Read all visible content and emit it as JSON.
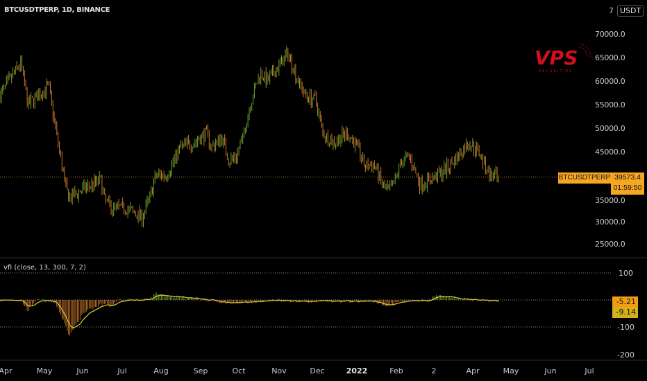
{
  "header": {
    "title": "BTCUSDTPERP, 1D, BINANCE",
    "currency": "USDT",
    "currency_prefix": "7"
  },
  "logo": {
    "text": "VPS",
    "subtext": "SECURITIES"
  },
  "price_axis": {
    "ticks": [
      "70000.0",
      "65000.0",
      "60000.0",
      "55000.0",
      "50000.0",
      "45000.0",
      "35000.0",
      "30000.0",
      "25000.0"
    ]
  },
  "last_price": {
    "symbol": "BTCUSDTPERP",
    "price": "39573.4",
    "countdown": "01:59:50"
  },
  "indicator": {
    "label": "vfi (close, 13, 300, 7, 2)",
    "ticks": [
      "100",
      "-100",
      "-200"
    ],
    "value": "-5.21",
    "signal": "-9.14"
  },
  "time_axis": {
    "labels": [
      "Apr",
      "May",
      "Jun",
      "Jul",
      "Aug",
      "Sep",
      "Oct",
      "Nov",
      "Dec",
      "2022",
      "Feb",
      "2",
      "Apr",
      "May",
      "Jun",
      "Jul"
    ]
  },
  "colors": {
    "up": "#6f9f2e",
    "down": "#c9782a",
    "accent": "#f5a623",
    "signal": "#d9c23a",
    "logo": "#d0101c"
  },
  "chart_data": {
    "type": "bar",
    "title": "BTCUSDTPERP, 1D, BINANCE",
    "ylim": [
      22000,
      73000
    ],
    "price_path": [
      [
        0,
        57000
      ],
      [
        30,
        64000
      ],
      [
        40,
        55000
      ],
      [
        55,
        57000
      ],
      [
        70,
        59000
      ],
      [
        80,
        50000
      ],
      [
        95,
        37000
      ],
      [
        100,
        35000
      ],
      [
        120,
        37000
      ],
      [
        145,
        39000
      ],
      [
        150,
        35000
      ],
      [
        160,
        33000
      ],
      [
        180,
        33000
      ],
      [
        205,
        31000
      ],
      [
        215,
        35000
      ],
      [
        225,
        40000
      ],
      [
        240,
        40000
      ],
      [
        260,
        46000
      ],
      [
        280,
        47000
      ],
      [
        297,
        49000
      ],
      [
        305,
        46000
      ],
      [
        320,
        48000
      ],
      [
        330,
        43000
      ],
      [
        340,
        44000
      ],
      [
        350,
        48000
      ],
      [
        360,
        55000
      ],
      [
        375,
        62000
      ],
      [
        385,
        60000
      ],
      [
        400,
        63000
      ],
      [
        415,
        66000
      ],
      [
        420,
        64000
      ],
      [
        430,
        60000
      ],
      [
        440,
        57000
      ],
      [
        455,
        56000
      ],
      [
        465,
        49000
      ],
      [
        480,
        47000
      ],
      [
        500,
        49000
      ],
      [
        515,
        46000
      ],
      [
        525,
        42000
      ],
      [
        540,
        42000
      ],
      [
        553,
        37000
      ],
      [
        565,
        37000
      ],
      [
        578,
        43000
      ],
      [
        590,
        44000
      ],
      [
        605,
        38000
      ],
      [
        620,
        39000
      ],
      [
        640,
        41000
      ],
      [
        660,
        44000
      ],
      [
        675,
        47000
      ],
      [
        690,
        45000
      ],
      [
        705,
        40000
      ],
      [
        718,
        39573
      ]
    ],
    "vfi_path": [
      [
        0,
        0
      ],
      [
        30,
        0
      ],
      [
        40,
        -40
      ],
      [
        50,
        -5
      ],
      [
        60,
        0
      ],
      [
        80,
        -10
      ],
      [
        100,
        -130
      ],
      [
        120,
        -50
      ],
      [
        150,
        -10
      ],
      [
        160,
        -25
      ],
      [
        170,
        0
      ],
      [
        215,
        0
      ],
      [
        225,
        25
      ],
      [
        240,
        15
      ],
      [
        300,
        0
      ],
      [
        330,
        -12
      ],
      [
        400,
        0
      ],
      [
        430,
        -5
      ],
      [
        540,
        -5
      ],
      [
        555,
        -25
      ],
      [
        570,
        -8
      ],
      [
        620,
        0
      ],
      [
        625,
        15
      ],
      [
        680,
        0
      ],
      [
        718,
        -5
      ]
    ],
    "vfi_ylim": [
      -220,
      140
    ]
  }
}
